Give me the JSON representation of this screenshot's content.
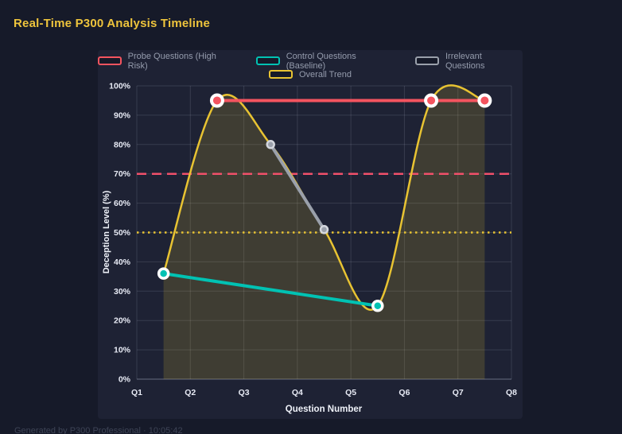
{
  "header": {
    "title": "Real-Time P300 Analysis Timeline",
    "title_color": "#eec43c"
  },
  "footer": {
    "text": "Generated by P300 Professional · 10:05:42"
  },
  "colors": {
    "page_background": "#161a29",
    "panel_background": "#1e2234",
    "gridline": "rgba(214,221,243,0.14)",
    "tick_text": "#e8ebf5",
    "legend_text": "#959cad"
  },
  "chart_data": {
    "type": "line",
    "title": "Real-Time P300 Analysis Timeline",
    "xlabel": "Question Number",
    "ylabel": "Deception Level (%)",
    "x_ticks": [
      "Q1",
      "Q2",
      "Q3",
      "Q4",
      "Q5",
      "Q6",
      "Q7",
      "Q8"
    ],
    "x_range": [
      1,
      8
    ],
    "ylim": [
      0,
      100
    ],
    "y_tick_step": 10,
    "y_tick_suffix": "%",
    "grid": true,
    "legend_position": "top",
    "series": [
      {
        "name": "Probe Questions (High Risk)",
        "color": "#f4545f",
        "shape": "straight",
        "fill": false,
        "points": [
          [
            2.5,
            95
          ],
          [
            6.5,
            95
          ],
          [
            7.5,
            95
          ]
        ]
      },
      {
        "name": "Control Questions (Baseline)",
        "color": "#00c2b3",
        "shape": "straight",
        "fill": false,
        "points": [
          [
            1.5,
            36
          ],
          [
            5.5,
            25
          ]
        ]
      },
      {
        "name": "Irrelevant Questions",
        "color": "#9aa0ab",
        "shape": "straight",
        "fill": false,
        "points": [
          [
            3.5,
            80
          ],
          [
            4.5,
            51
          ]
        ]
      },
      {
        "name": "Overall Trend",
        "color": "#e8c332",
        "shape": "spline",
        "fill": true,
        "points": [
          [
            1.5,
            36
          ],
          [
            2.5,
            95
          ],
          [
            3.5,
            80
          ],
          [
            4.5,
            51
          ],
          [
            5.5,
            25
          ],
          [
            6.5,
            95
          ],
          [
            7.5,
            95
          ]
        ]
      }
    ],
    "thresholds": [
      {
        "name": "probe-threshold",
        "value": 70,
        "color": "#f0506a",
        "style": "dashed"
      },
      {
        "name": "baseline-threshold",
        "value": 50,
        "color": "#e8c332",
        "style": "dotted"
      }
    ]
  }
}
